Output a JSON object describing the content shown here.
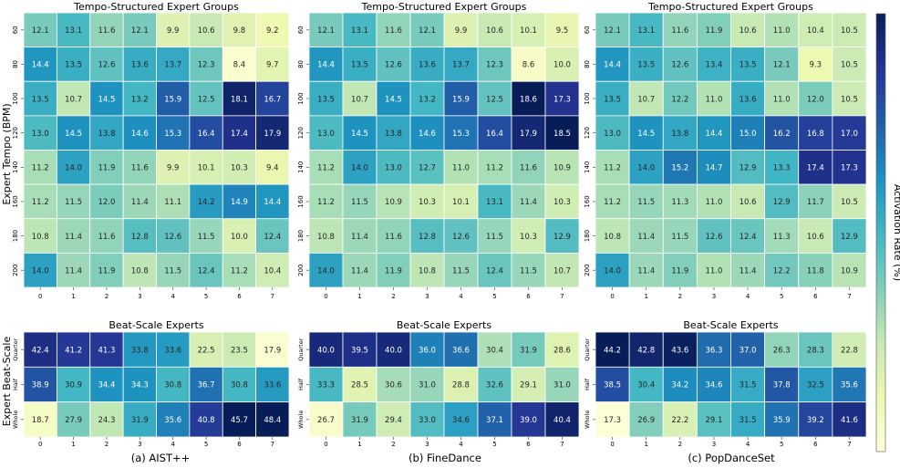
{
  "figure": {
    "top_title": "Tempo-Structured Expert Groups",
    "bottom_title": "Beat-Scale Experts",
    "ylabel_top": "Expert Tempo (BPM)",
    "ylabel_bottom": "Expert Beat-Scale",
    "colorbar_label": "Activation Rate (%)",
    "captions": [
      "(a) AIST++",
      "(b) FineDance",
      "(c) PopDanceSet"
    ]
  },
  "chart_data": [
    {
      "type": "heatmap",
      "panel": "(a) AIST++",
      "title": "Tempo-Structured Expert Groups",
      "ylabel": "Expert Tempo (BPM)",
      "x": [
        "0",
        "1",
        "2",
        "3",
        "4",
        "5",
        "6",
        "7"
      ],
      "y": [
        "60",
        "80",
        "100",
        "120",
        "140",
        "160",
        "180",
        "200"
      ],
      "values": [
        [
          12.1,
          13.1,
          11.6,
          12.1,
          9.9,
          10.6,
          9.8,
          9.2
        ],
        [
          14.4,
          13.5,
          12.6,
          13.6,
          13.7,
          12.3,
          8.4,
          9.7
        ],
        [
          13.5,
          10.7,
          14.5,
          13.2,
          15.9,
          12.5,
          18.1,
          16.7
        ],
        [
          13.0,
          14.5,
          13.8,
          14.6,
          15.3,
          16.4,
          17.4,
          17.9
        ],
        [
          11.2,
          14.0,
          11.9,
          11.6,
          9.9,
          10.1,
          10.3,
          9.4
        ],
        [
          11.2,
          11.5,
          12.0,
          11.4,
          11.1,
          14.2,
          14.9,
          14.4
        ],
        [
          10.8,
          11.4,
          11.6,
          12.8,
          12.6,
          11.5,
          10.0,
          12.4
        ],
        [
          14.0,
          11.4,
          11.9,
          10.8,
          11.5,
          12.4,
          11.2,
          10.4
        ]
      ],
      "vmin": 8,
      "vmax": 18.5
    },
    {
      "type": "heatmap",
      "panel": "(b) FineDance",
      "title": "Tempo-Structured Expert Groups",
      "x": [
        "0",
        "1",
        "2",
        "3",
        "4",
        "5",
        "6",
        "7"
      ],
      "y": [
        "60",
        "80",
        "100",
        "120",
        "140",
        "160",
        "180",
        "200"
      ],
      "values": [
        [
          12.1,
          13.1,
          11.6,
          12.1,
          9.9,
          10.6,
          10.1,
          9.5
        ],
        [
          14.4,
          13.5,
          12.6,
          13.6,
          13.7,
          12.3,
          8.6,
          10.0
        ],
        [
          13.5,
          10.7,
          14.5,
          13.2,
          15.9,
          12.5,
          18.6,
          17.3
        ],
        [
          13.0,
          14.5,
          13.8,
          14.6,
          15.3,
          16.4,
          17.9,
          18.5
        ],
        [
          11.2,
          14.0,
          13.0,
          12.7,
          11.0,
          11.2,
          11.6,
          10.9
        ],
        [
          11.2,
          11.5,
          10.9,
          10.3,
          10.1,
          13.1,
          11.4,
          10.3
        ],
        [
          10.8,
          11.4,
          11.6,
          12.8,
          12.6,
          11.5,
          10.3,
          12.9
        ],
        [
          14.0,
          11.4,
          11.9,
          10.8,
          11.5,
          12.4,
          11.5,
          10.7
        ]
      ],
      "vmin": 8,
      "vmax": 18.5
    },
    {
      "type": "heatmap",
      "panel": "(c) PopDanceSet",
      "title": "Tempo-Structured Expert Groups",
      "x": [
        "0",
        "1",
        "2",
        "3",
        "4",
        "5",
        "6",
        "7"
      ],
      "y": [
        "60",
        "80",
        "100",
        "120",
        "140",
        "160",
        "180",
        "200"
      ],
      "values": [
        [
          12.1,
          13.1,
          11.6,
          11.9,
          10.6,
          11.0,
          10.4,
          10.5
        ],
        [
          14.4,
          13.5,
          12.6,
          13.4,
          13.5,
          12.1,
          9.3,
          10.5
        ],
        [
          13.5,
          10.7,
          12.2,
          11.0,
          13.6,
          11.0,
          12.0,
          10.5
        ],
        [
          13.0,
          14.5,
          13.8,
          14.4,
          15.0,
          16.2,
          16.8,
          17.0
        ],
        [
          11.2,
          14.0,
          15.2,
          14.7,
          12.9,
          13.3,
          17.4,
          17.3
        ],
        [
          11.2,
          11.5,
          11.3,
          11.0,
          10.6,
          12.9,
          11.7,
          10.5
        ],
        [
          10.8,
          11.4,
          11.5,
          12.6,
          12.4,
          11.3,
          10.6,
          12.9
        ],
        [
          14.0,
          11.4,
          11.9,
          11.0,
          11.4,
          12.2,
          11.8,
          10.9
        ]
      ],
      "vmin": 8,
      "vmax": 18.5
    },
    {
      "type": "heatmap",
      "panel": "(a) AIST++",
      "title": "Beat-Scale Experts",
      "ylabel": "Expert Beat-Scale",
      "x": [
        "0",
        "1",
        "2",
        "3",
        "4",
        "5",
        "6",
        "7"
      ],
      "y": [
        "Quarter",
        "Half",
        "Whole"
      ],
      "values": [
        [
          42.4,
          41.2,
          41.3,
          33.8,
          33.6,
          22.5,
          23.5,
          17.9
        ],
        [
          38.9,
          30.9,
          34.4,
          34.3,
          30.8,
          36.7,
          30.8,
          33.6
        ],
        [
          18.7,
          27.9,
          24.3,
          31.9,
          35.6,
          40.8,
          45.7,
          48.4
        ]
      ],
      "vmin": 17,
      "vmax": 45
    },
    {
      "type": "heatmap",
      "panel": "(b) FineDance",
      "title": "Beat-Scale Experts",
      "x": [
        "0",
        "1",
        "2",
        "3",
        "4",
        "5",
        "6",
        "7"
      ],
      "y": [
        "Quarter",
        "Half",
        "Whole"
      ],
      "values": [
        [
          40.0,
          39.5,
          40.0,
          36.0,
          36.6,
          30.4,
          31.9,
          28.6
        ],
        [
          33.3,
          28.5,
          30.6,
          31.0,
          28.8,
          32.6,
          29.1,
          31.0
        ],
        [
          26.7,
          31.9,
          29.4,
          33.0,
          34.6,
          37.1,
          39.0,
          40.4
        ]
      ],
      "vmin": 26,
      "vmax": 41
    },
    {
      "type": "heatmap",
      "panel": "(c) PopDanceSet",
      "title": "Beat-Scale Experts",
      "x": [
        "0",
        "1",
        "2",
        "3",
        "4",
        "5",
        "6",
        "7"
      ],
      "y": [
        "Quarter",
        "Half",
        "Whole"
      ],
      "values": [
        [
          44.2,
          42.8,
          43.6,
          36.3,
          37.0,
          26.3,
          28.3,
          22.8
        ],
        [
          38.5,
          30.4,
          34.2,
          34.6,
          31.5,
          37.8,
          32.5,
          35.6
        ],
        [
          17.3,
          26.9,
          22.2,
          29.1,
          31.5,
          35.9,
          39.2,
          41.6
        ]
      ],
      "vmin": 17,
      "vmax": 44
    }
  ]
}
